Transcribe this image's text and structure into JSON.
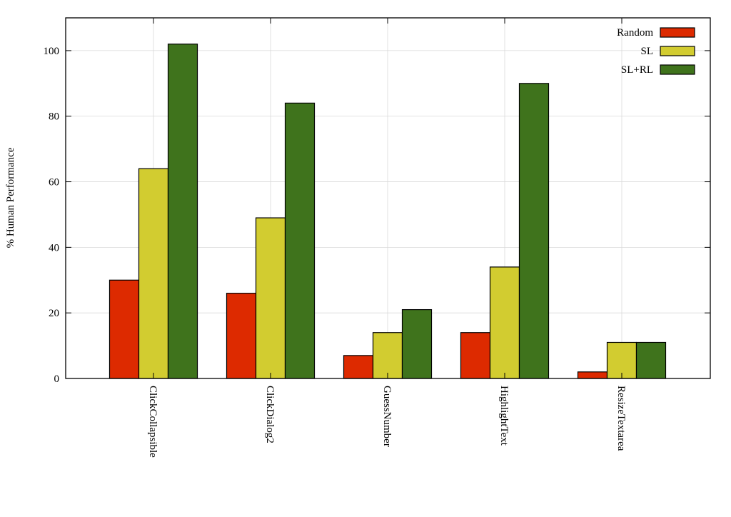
{
  "chart_data": {
    "type": "bar",
    "title": "",
    "xlabel": "",
    "ylabel": "% Human Performance",
    "ylim": [
      0,
      110
    ],
    "yticks": [
      0,
      20,
      40,
      60,
      80,
      100
    ],
    "grid": true,
    "legend_position": "top-right",
    "categories": [
      "ClickCollapsible",
      "ClickDialog2",
      "GuessNumber",
      "HighlightText",
      "ResizeTextarea"
    ],
    "series": [
      {
        "name": "Random",
        "color": "#dd2a00",
        "values": [
          30,
          26,
          7,
          14,
          2
        ]
      },
      {
        "name": "SL",
        "color": "#d2cc30",
        "values": [
          64,
          49,
          14,
          34,
          11
        ]
      },
      {
        "name": "SL+RL",
        "color": "#3f731c",
        "values": [
          102,
          84,
          21,
          90,
          11
        ]
      }
    ]
  }
}
